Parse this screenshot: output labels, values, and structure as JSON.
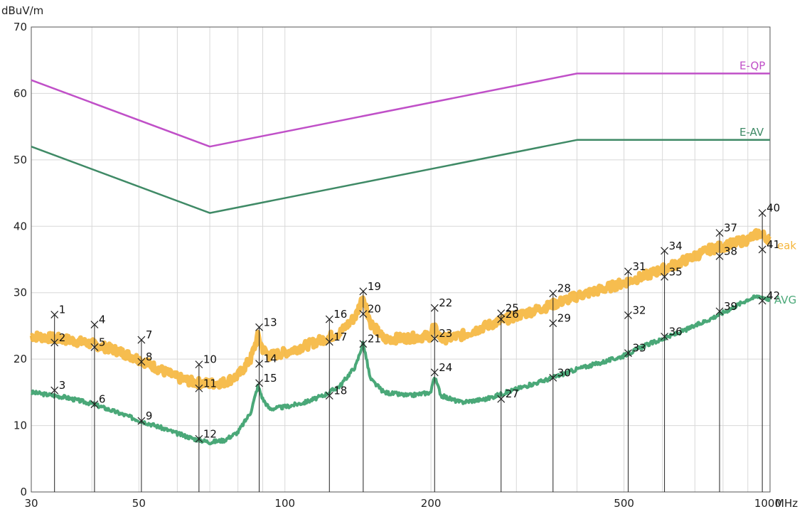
{
  "chart_data": {
    "type": "line",
    "ylabel": "dBuV/m",
    "x_unit": "MHz",
    "x_scale": "log",
    "xlim": [
      30,
      1000
    ],
    "ylim": [
      0,
      70
    ],
    "x_tick_labels": [
      "30",
      "50",
      "100",
      "200",
      "500",
      "1000"
    ],
    "y_tick_labels": [
      "0",
      "10",
      "20",
      "30",
      "40",
      "50",
      "60",
      "70"
    ],
    "grid": true,
    "colors": {
      "eqp": "#c050c8",
      "eav": "#3f8a66",
      "peak": "#f5b63c",
      "avg": "#4aa878",
      "grid": "#d8d8d8",
      "marker": "#222222"
    },
    "series": [
      {
        "name": "E-QP",
        "label_text": "E-QP",
        "x": [
          30,
          70,
          400,
          1000
        ],
        "y": [
          62,
          52,
          63,
          63
        ]
      },
      {
        "name": "E-AV",
        "label_text": "E-AV",
        "x": [
          30,
          70,
          400,
          1000
        ],
        "y": [
          52,
          42,
          53,
          53
        ]
      },
      {
        "name": "Peak",
        "label_text": "eak",
        "x": [
          30,
          35,
          40,
          45,
          50,
          55,
          60,
          65,
          70,
          75,
          80,
          85,
          88,
          90,
          93,
          100,
          110,
          120,
          130,
          140,
          145,
          150,
          160,
          180,
          200,
          202,
          210,
          230,
          260,
          300,
          350,
          400,
          450,
          500,
          550,
          600,
          650,
          700,
          750,
          800,
          850,
          900,
          950,
          1000
        ],
        "y": [
          23.5,
          23,
          22.3,
          21.3,
          20,
          18.5,
          17.2,
          16.5,
          16.3,
          16.5,
          17.5,
          20,
          23.5,
          21.5,
          20.5,
          21,
          22,
          23,
          24,
          26.5,
          29.5,
          25.5,
          23,
          23.2,
          23.5,
          25,
          23,
          23.5,
          25,
          26.5,
          28,
          29.5,
          30.5,
          31.5,
          32.5,
          33.5,
          34.5,
          35.5,
          36.5,
          37,
          37.5,
          38,
          39,
          38
        ]
      },
      {
        "name": "AVG",
        "label_text": "AVG",
        "x": [
          30,
          35,
          40,
          45,
          50,
          55,
          60,
          65,
          70,
          75,
          80,
          85,
          88,
          90,
          93,
          100,
          110,
          120,
          130,
          140,
          145,
          150,
          160,
          180,
          200,
          203,
          210,
          230,
          260,
          300,
          350,
          400,
          450,
          500,
          550,
          600,
          650,
          700,
          750,
          800,
          850,
          900,
          950,
          1000
        ],
        "y": [
          15,
          14.3,
          13.3,
          12,
          10.8,
          9.8,
          8.8,
          8,
          7.5,
          7.8,
          9,
          12,
          16,
          14,
          12.5,
          12.8,
          13.5,
          14.5,
          16,
          19,
          22.5,
          17,
          15,
          14.5,
          15,
          17.5,
          14.5,
          13.5,
          14,
          15.5,
          17,
          18.5,
          19.5,
          20.5,
          22,
          23,
          24,
          25,
          26,
          27,
          28,
          29,
          29.5,
          29
        ]
      }
    ],
    "markers": [
      {
        "id": "1",
        "x": 33.5,
        "y": 26.7
      },
      {
        "id": "2",
        "x": 33.5,
        "y": 22.5
      },
      {
        "id": "3",
        "x": 33.5,
        "y": 15.3
      },
      {
        "id": "4",
        "x": 40.5,
        "y": 25.2
      },
      {
        "id": "5",
        "x": 40.5,
        "y": 21.8
      },
      {
        "id": "6",
        "x": 40.5,
        "y": 13.2
      },
      {
        "id": "7",
        "x": 50.6,
        "y": 22.9
      },
      {
        "id": "8",
        "x": 50.6,
        "y": 19.6
      },
      {
        "id": "9",
        "x": 50.6,
        "y": 10.7
      },
      {
        "id": "10",
        "x": 66.5,
        "y": 19.2
      },
      {
        "id": "11",
        "x": 66.5,
        "y": 15.6
      },
      {
        "id": "12",
        "x": 66.5,
        "y": 8.0
      },
      {
        "id": "13",
        "x": 88.5,
        "y": 24.8
      },
      {
        "id": "14",
        "x": 88.5,
        "y": 19.3
      },
      {
        "id": "15",
        "x": 88.5,
        "y": 16.4
      },
      {
        "id": "16",
        "x": 123.5,
        "y": 26.0
      },
      {
        "id": "17",
        "x": 123.5,
        "y": 22.6
      },
      {
        "id": "18",
        "x": 123.5,
        "y": 14.5
      },
      {
        "id": "19",
        "x": 145.0,
        "y": 30.2
      },
      {
        "id": "20",
        "x": 145.0,
        "y": 26.8
      },
      {
        "id": "21",
        "x": 145.0,
        "y": 22.3
      },
      {
        "id": "22",
        "x": 203.5,
        "y": 27.7
      },
      {
        "id": "23",
        "x": 203.5,
        "y": 23.1
      },
      {
        "id": "24",
        "x": 203.5,
        "y": 18.0
      },
      {
        "id": "25",
        "x": 279.0,
        "y": 26.9
      },
      {
        "id": "26",
        "x": 279.0,
        "y": 26.0
      },
      {
        "id": "27",
        "x": 279.0,
        "y": 14.0
      },
      {
        "id": "28",
        "x": 357.0,
        "y": 29.9
      },
      {
        "id": "29",
        "x": 357.0,
        "y": 25.4
      },
      {
        "id": "30",
        "x": 357.0,
        "y": 17.2
      },
      {
        "id": "31",
        "x": 510.0,
        "y": 33.2
      },
      {
        "id": "32",
        "x": 510.0,
        "y": 26.6
      },
      {
        "id": "33",
        "x": 510.0,
        "y": 20.9
      },
      {
        "id": "34",
        "x": 606.0,
        "y": 36.3
      },
      {
        "id": "35",
        "x": 606.0,
        "y": 32.4
      },
      {
        "id": "36",
        "x": 606.0,
        "y": 23.4
      },
      {
        "id": "37",
        "x": 787.0,
        "y": 39.0
      },
      {
        "id": "38",
        "x": 787.0,
        "y": 35.5
      },
      {
        "id": "39",
        "x": 787.0,
        "y": 27.2
      },
      {
        "id": "40",
        "x": 964.0,
        "y": 42.0
      },
      {
        "id": "41",
        "x": 964.0,
        "y": 36.5
      },
      {
        "id": "42",
        "x": 964.0,
        "y": 28.8
      }
    ]
  }
}
